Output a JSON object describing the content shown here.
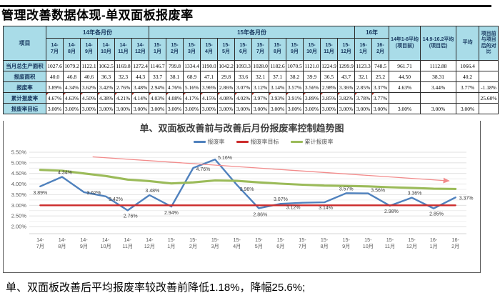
{
  "window": {
    "title": "管理改善数据体现-单双面板报废率"
  },
  "table": {
    "corner": "项目",
    "year_groups": [
      {
        "label": "14年各月份",
        "span": 6
      },
      {
        "label": "15年各月份",
        "span": 12
      },
      {
        "label": "16年",
        "span": 2
      }
    ],
    "summary_cols": [
      "14年1-8平均(项目前)",
      "14.9-16.2平均(项目后)",
      "平均",
      "项目前与项目后的对比"
    ],
    "months": [
      {
        "t": "14-",
        "b": "7月"
      },
      {
        "t": "14-",
        "b": "8月"
      },
      {
        "t": "14-",
        "b": "9月"
      },
      {
        "t": "14-",
        "b": "10月"
      },
      {
        "t": "14-",
        "b": "11月"
      },
      {
        "t": "14-",
        "b": "12月"
      },
      {
        "t": "15-",
        "b": "1月"
      },
      {
        "t": "15-",
        "b": "2月"
      },
      {
        "t": "15-",
        "b": "3月"
      },
      {
        "t": "15-",
        "b": "4月"
      },
      {
        "t": "15-",
        "b": "5月"
      },
      {
        "t": "15-",
        "b": "6月"
      },
      {
        "t": "15-",
        "b": "7月"
      },
      {
        "t": "15-",
        "b": "8月"
      },
      {
        "t": "15-",
        "b": "9月"
      },
      {
        "t": "15-",
        "b": "10月"
      },
      {
        "t": "15-",
        "b": "11月"
      },
      {
        "t": "15-",
        "b": "12月"
      },
      {
        "t": "16-",
        "b": "1月"
      },
      {
        "t": "16-",
        "b": "2月"
      }
    ],
    "rows": [
      {
        "label": "当月总生产面积",
        "values": [
          "1027.6",
          "1079.2",
          "1122.1",
          "1062.5",
          "1169.8",
          "1272.4",
          "1146.7",
          "799.8",
          "1334.4",
          "1190.0",
          "1042.2",
          "1093.3",
          "1028.0",
          "1182.6",
          "1070.5",
          "1121.0",
          "1224.9",
          "1299.9",
          "1123.3",
          "748.5",
          "961.71",
          "1112.88",
          "1066.4",
          ""
        ]
      },
      {
        "label": "报废面积",
        "values": [
          "40.0",
          "46.8",
          "40.6",
          "36.3",
          "32.3",
          "44.3",
          "33.7",
          "38.1",
          "68.9",
          "47.1",
          "29.8",
          "33.6",
          "32.1",
          "37.1",
          "38.2",
          "39.9",
          "36.5",
          "43.7",
          "32.1",
          "25.2",
          "44.50",
          "38.31",
          "40.2",
          ""
        ]
      },
      {
        "label": "报废率",
        "values": [
          "3.89%",
          "4.34%",
          "3.62%",
          "3.42%",
          "2.76%",
          "3.48%",
          "2.94%",
          "4.76%",
          "5.16%",
          "3.96%",
          "2.86%",
          "3.07%",
          "3.12%",
          "3.14%",
          "3.57%",
          "3.56%",
          "2.98%",
          "3.36%",
          "2.85%",
          "3.37%",
          "4.63%",
          "3.44%",
          "3.77%",
          "-1.18%"
        ]
      },
      {
        "label": "累计报废率",
        "has_comment_markers": true,
        "values": [
          "4.67%",
          "4.63%",
          "4.50%",
          "4.38%",
          "4.21%",
          "4.14%",
          "4.03%",
          "4.08%",
          "4.17%",
          "4.15%",
          "4.08%",
          "4.02%",
          "3.97%",
          "3.93%",
          "3.91%",
          "3.89%",
          "3.85%",
          "3.82%",
          "3.78%",
          "3.77%",
          "",
          "",
          "",
          "25.60%"
        ]
      },
      {
        "label": "报废率目标",
        "values": [
          "3.00%",
          "3.00%",
          "3.00%",
          "3.00%",
          "3.00%",
          "3.00%",
          "3.00%",
          "3.00%",
          "3.00%",
          "3.00%",
          "3.00%",
          "3.00%",
          "3.00%",
          "3.00%",
          "3.00%",
          "3.00%",
          "3.00%",
          "3.00%",
          "3.00%",
          "3.00%",
          "3.00%",
          "3.00%",
          "3.00%",
          ""
        ]
      }
    ]
  },
  "chart_data": {
    "type": "line",
    "title": "单、双面板改善前与改善后月份报废率控制趋势图",
    "categories": [
      "14-7月",
      "14-8月",
      "14-9月",
      "14-10月",
      "14-11月",
      "14-12月",
      "15-1月",
      "15-2月",
      "15-3月",
      "15-4月",
      "15-5月",
      "15-6月",
      "15-7月",
      "15-8月",
      "15-9月",
      "15-10月",
      "15-11月",
      "15-12月",
      "16-1月",
      "16-2月"
    ],
    "series": [
      {
        "name": "报废率",
        "color": "#4f81bd",
        "data_labels": true,
        "values": [
          3.89,
          4.34,
          3.62,
          3.42,
          2.76,
          3.48,
          2.94,
          4.76,
          5.16,
          3.96,
          2.86,
          3.07,
          3.12,
          3.14,
          3.57,
          3.56,
          2.98,
          3.36,
          2.85,
          3.37
        ]
      },
      {
        "name": "报废率目标",
        "color": "#cc2b2b",
        "data_labels": false,
        "values": [
          3.0,
          3.0,
          3.0,
          3.0,
          3.0,
          3.0,
          3.0,
          3.0,
          3.0,
          3.0,
          3.0,
          3.0,
          3.0,
          3.0,
          3.0,
          3.0,
          3.0,
          3.0,
          3.0,
          3.0
        ]
      },
      {
        "name": "累计报废率",
        "color": "#9bbb59",
        "data_labels": false,
        "values": [
          4.67,
          4.63,
          4.5,
          4.38,
          4.21,
          4.14,
          4.03,
          4.08,
          4.17,
          4.15,
          4.08,
          4.02,
          3.97,
          3.93,
          3.91,
          3.89,
          3.85,
          3.82,
          3.78,
          3.77
        ]
      }
    ],
    "y_axis": {
      "min": 2.0,
      "max": 5.5,
      "label_step": 0.5,
      "grid_step": 0.25,
      "format": "percent"
    },
    "legend_position": "top",
    "grid": true,
    "annotations": [
      {
        "type": "arrow",
        "color": "#f28b8b",
        "from_index": 2.9,
        "from_value": 5.28,
        "to_index": 19.2,
        "to_value": 4.15
      }
    ]
  },
  "footer": {
    "note": "单、双面板改善后平均报废率较改善前降低1.18%，降幅25.6%;"
  }
}
